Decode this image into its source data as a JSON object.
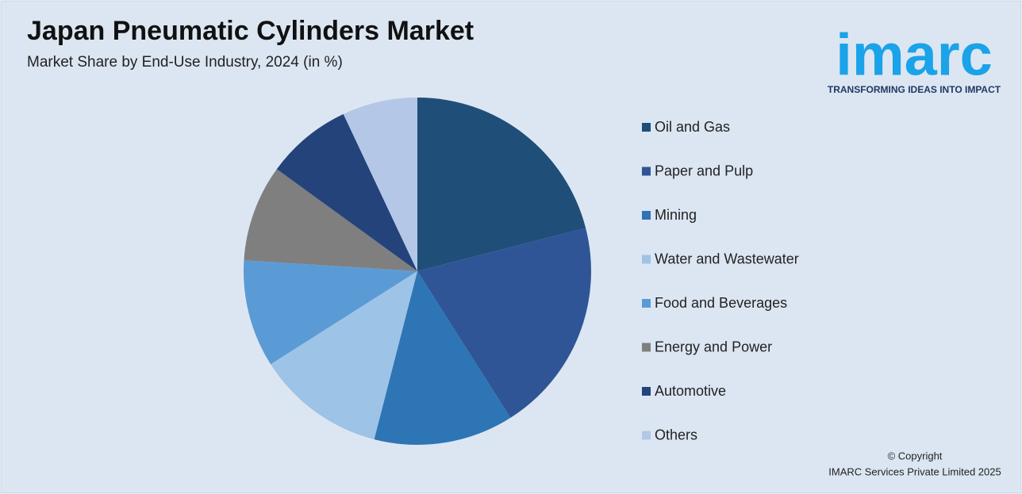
{
  "chart_data": {
    "type": "pie",
    "title": "Japan Pneumatic Cylinders Market",
    "subtitle": "Market Share by End-Use Industry, 2024 (in %)",
    "categories": [
      "Oil and Gas",
      "Paper and Pulp",
      "Mining",
      "Water and Wastewater",
      "Food and Beverages",
      "Energy and Power",
      "Automotive",
      "Others"
    ],
    "values": [
      21,
      20,
      13,
      12,
      10,
      9,
      8,
      7
    ],
    "colors": [
      "#1f4e79",
      "#2f5597",
      "#2e75b6",
      "#9dc3e6",
      "#5b9bd5",
      "#7f7f7f",
      "#24437a",
      "#b4c7e7"
    ],
    "legend": "right"
  },
  "logo": {
    "name": "imarc",
    "tagline": "TRANSFORMING IDEAS INTO IMPACT"
  },
  "footer": [
    "© Copyright",
    "IMARC Services Private Limited 2025"
  ]
}
